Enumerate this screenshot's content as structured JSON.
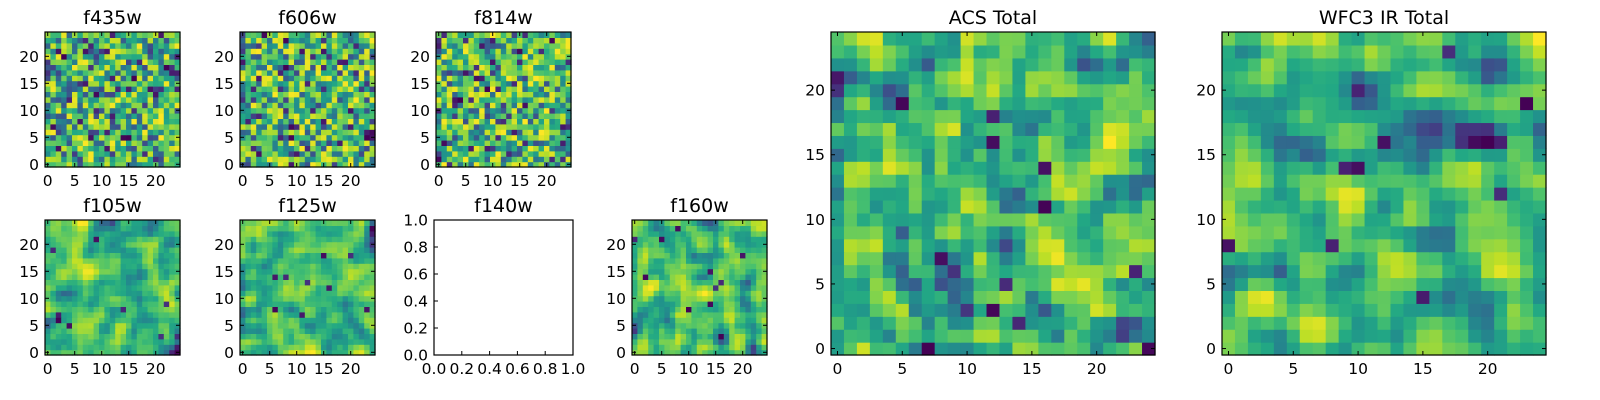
{
  "colors": {
    "frame": "#000000",
    "background": "#ffffff",
    "colormap": "viridis"
  },
  "chart_data": [
    {
      "type": "heatmap",
      "title": "f435w",
      "grid_size": 25,
      "xlim": [
        0,
        24
      ],
      "ylim": [
        0,
        24
      ],
      "xticks": [
        "0",
        "5",
        "10",
        "15",
        "20"
      ],
      "yticks": [
        "0",
        "5",
        "10",
        "15",
        "20"
      ],
      "texture": "noisy",
      "seed": 11
    },
    {
      "type": "heatmap",
      "title": "f606w",
      "grid_size": 25,
      "xlim": [
        0,
        24
      ],
      "ylim": [
        0,
        24
      ],
      "xticks": [
        "0",
        "5",
        "10",
        "15",
        "20"
      ],
      "yticks": [
        "0",
        "5",
        "10",
        "15",
        "20"
      ],
      "texture": "noisy",
      "seed": 23
    },
    {
      "type": "heatmap",
      "title": "f814w",
      "grid_size": 25,
      "xlim": [
        0,
        24
      ],
      "ylim": [
        0,
        24
      ],
      "xticks": [
        "0",
        "5",
        "10",
        "15",
        "20"
      ],
      "yticks": [
        "0",
        "5",
        "10",
        "15",
        "20"
      ],
      "texture": "noisy",
      "seed": 37
    },
    {
      "type": "heatmap",
      "title": "f105w",
      "grid_size": 25,
      "xlim": [
        0,
        24
      ],
      "ylim": [
        0,
        24
      ],
      "xticks": [
        "0",
        "5",
        "10",
        "15",
        "20"
      ],
      "yticks": [
        "0",
        "5",
        "10",
        "15",
        "20"
      ],
      "texture": "smooth",
      "seed": 41
    },
    {
      "type": "heatmap",
      "title": "f125w",
      "grid_size": 25,
      "xlim": [
        0,
        24
      ],
      "ylim": [
        0,
        24
      ],
      "xticks": [
        "0",
        "5",
        "10",
        "15",
        "20"
      ],
      "yticks": [
        "0",
        "5",
        "10",
        "15",
        "20"
      ],
      "texture": "smooth",
      "seed": 53
    },
    {
      "type": "empty",
      "title": "f140w",
      "xlim": [
        0,
        1
      ],
      "ylim": [
        0,
        1
      ],
      "xticks": [
        "0.0",
        "0.2",
        "0.4",
        "0.6",
        "0.8",
        "1.0"
      ],
      "yticks": [
        "0.0",
        "0.2",
        "0.4",
        "0.6",
        "0.8",
        "1.0"
      ]
    },
    {
      "type": "heatmap",
      "title": "f160w",
      "grid_size": 25,
      "xlim": [
        0,
        24
      ],
      "ylim": [
        0,
        24
      ],
      "xticks": [
        "0",
        "5",
        "10",
        "15",
        "20"
      ],
      "yticks": [
        "0",
        "5",
        "10",
        "15",
        "20"
      ],
      "texture": "smooth",
      "seed": 67
    },
    {
      "type": "heatmap",
      "title": "ACS Total",
      "grid_size": 25,
      "xlim": [
        0,
        24
      ],
      "ylim": [
        0,
        24
      ],
      "xticks": [
        "0",
        "5",
        "10",
        "15",
        "20"
      ],
      "yticks": [
        "0",
        "5",
        "10",
        "15",
        "20"
      ],
      "texture": "medium",
      "seed": 79
    },
    {
      "type": "heatmap",
      "title": "WFC3 IR Total",
      "grid_size": 25,
      "xlim": [
        0,
        24
      ],
      "ylim": [
        0,
        24
      ],
      "xticks": [
        "0",
        "5",
        "10",
        "15",
        "20"
      ],
      "yticks": [
        "0",
        "5",
        "10",
        "15",
        "20"
      ],
      "texture": "smooth",
      "seed": 97
    }
  ]
}
